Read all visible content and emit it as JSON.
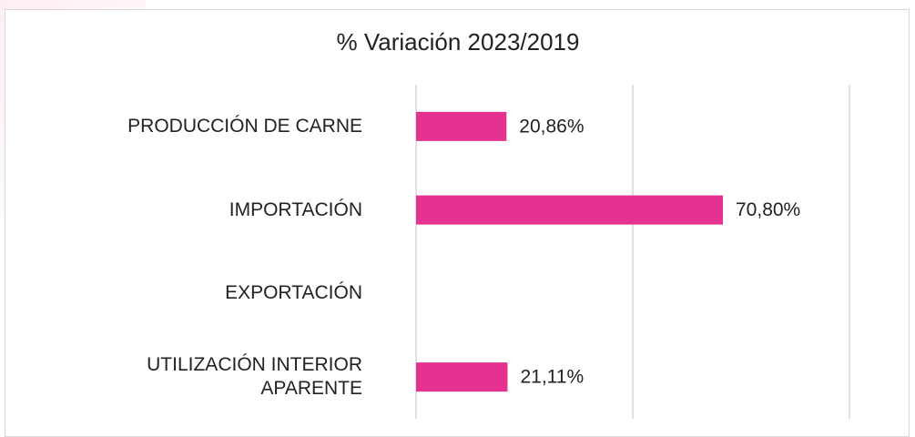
{
  "chart_data": {
    "type": "barh",
    "title": "% Variación 2023/2019",
    "categories": [
      "PRODUCCIÓN DE CARNE",
      "IMPORTACIÓN",
      "EXPORTACIÓN",
      "UTILIZACIÓN INTERIOR APARENTE"
    ],
    "values": [
      20.86,
      70.8,
      null,
      21.11
    ],
    "value_labels": [
      "20,86%",
      "70,80%",
      null,
      "21,11%"
    ],
    "color": "#e5318f",
    "xlim": [
      0,
      100
    ],
    "xticks": [
      0,
      50,
      100
    ],
    "grid": true
  }
}
